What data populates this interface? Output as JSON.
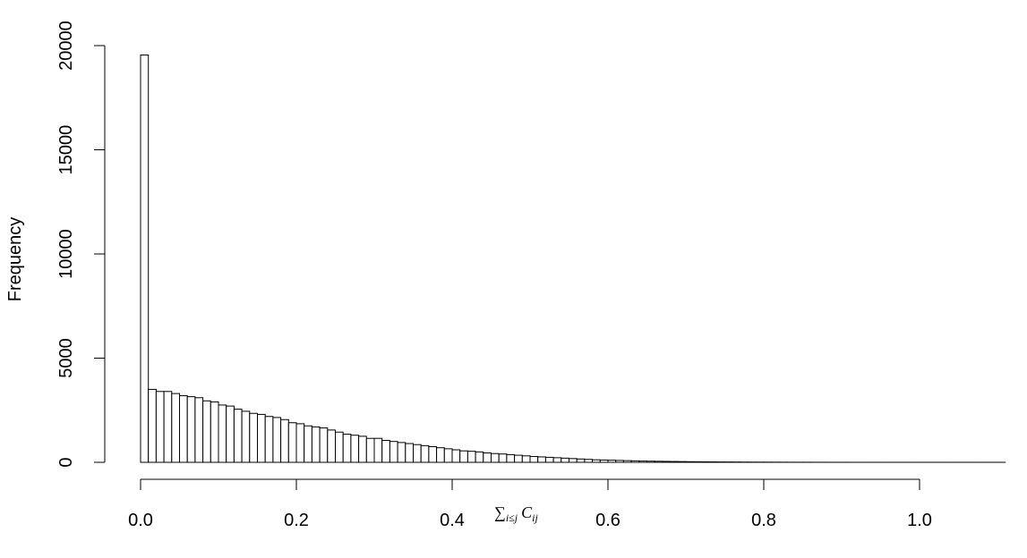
{
  "chart_data": {
    "type": "bar",
    "title": "",
    "ylabel": "Frequency",
    "xlabel": "∑i≤j Cij",
    "xlabel_parts": {
      "sym": "∑",
      "sub1": "i≤j",
      "main": "C",
      "sub2": "ij"
    },
    "xlim": [
      0.0,
      1.11
    ],
    "ylim": [
      0,
      20000
    ],
    "x_ticks": [
      0.0,
      0.2,
      0.4,
      0.6,
      0.8,
      1.0
    ],
    "x_tick_labels": [
      "0.0",
      "0.2",
      "0.4",
      "0.6",
      "0.8",
      "1.0"
    ],
    "y_ticks": [
      0,
      5000,
      10000,
      15000,
      20000
    ],
    "y_tick_labels": [
      "0",
      "5000",
      "10000",
      "15000",
      "20000"
    ],
    "bin_width": 0.01,
    "bin_start": 0.0,
    "values": [
      19550,
      3500,
      3400,
      3400,
      3300,
      3200,
      3150,
      3100,
      2950,
      2900,
      2750,
      2700,
      2550,
      2450,
      2350,
      2300,
      2200,
      2150,
      2050,
      1900,
      1850,
      1750,
      1700,
      1650,
      1550,
      1450,
      1350,
      1300,
      1250,
      1150,
      1150,
      1050,
      1000,
      950,
      900,
      850,
      800,
      750,
      700,
      650,
      600,
      550,
      530,
      500,
      450,
      420,
      400,
      370,
      340,
      310,
      280,
      260,
      240,
      220,
      200,
      180,
      160,
      140,
      120,
      110,
      100,
      90,
      80,
      70,
      60,
      55,
      50,
      45,
      40,
      35,
      30,
      27,
      24,
      21,
      18,
      16,
      14,
      12,
      10,
      9,
      8,
      7,
      6,
      5,
      4,
      4,
      3,
      3,
      2,
      2,
      2,
      1,
      1,
      1,
      1,
      1,
      1,
      1,
      1,
      1,
      1,
      1,
      1,
      1,
      1,
      1,
      1,
      1,
      1,
      1,
      1
    ]
  }
}
